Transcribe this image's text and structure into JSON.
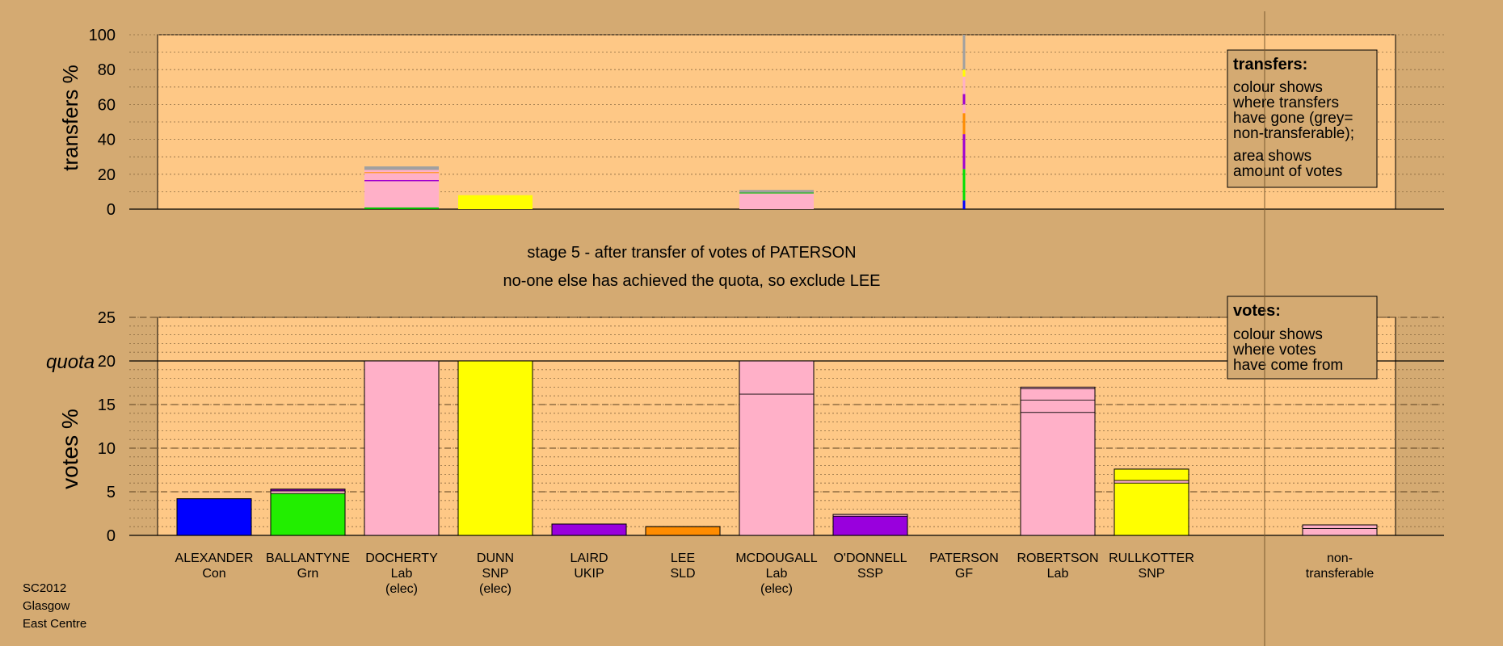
{
  "colors": {
    "background": "#d4aa72",
    "plot_bg": "#fec886",
    "grey": "#a0a0a0"
  },
  "chart_data": [
    {
      "type": "bar",
      "ylabel": "transfers %",
      "ylim": [
        0,
        100
      ],
      "yticks": [
        "0",
        "20",
        "40",
        "60",
        "80",
        "100"
      ],
      "grid": "dotted every 10",
      "candidates": [
        "ALEXANDER",
        "BALLANTYNE",
        "DOCHERTY",
        "DUNN",
        "LAIRD",
        "LEE",
        "MCDOUGALL",
        "O'DONNELL",
        "PATERSON",
        "ROBERTSON",
        "RULLKOTTER",
        "non-transferable"
      ],
      "values": [
        0,
        0,
        23,
        8,
        0,
        0,
        11,
        0,
        100,
        0,
        0,
        0
      ],
      "segments": [
        [],
        [],
        [
          {
            "color": "#00c000",
            "h": 1
          },
          {
            "color": "#ffb0c8",
            "h": 15
          },
          {
            "color": "#a000d0",
            "h": 0.7
          },
          {
            "color": "#ffb0c8",
            "h": 4
          },
          {
            "color": "#ff8c00",
            "h": 0.5
          },
          {
            "color": "#ffb0c8",
            "h": 1.3
          },
          {
            "color": "#a0a0a0",
            "h": 2
          }
        ],
        [
          {
            "color": "#ffff00",
            "h": 8
          }
        ],
        [],
        [],
        [
          {
            "color": "#ffb0c8",
            "h": 9
          },
          {
            "color": "#00c000",
            "h": 0.5
          },
          {
            "color": "#a0a0a0",
            "h": 1.5
          }
        ],
        [],
        [
          {
            "color": "#0000ff",
            "h": 5
          },
          {
            "color": "#00e000",
            "h": 18
          },
          {
            "color": "#a000d0",
            "h": 20
          },
          {
            "color": "#ff8c00",
            "h": 12
          },
          {
            "color": "#ffb0c8",
            "h": 5
          },
          {
            "color": "#a000d0",
            "h": 6
          },
          {
            "color": "#ffb0c8",
            "h": 10
          },
          {
            "color": "#ffff00",
            "h": 4
          },
          {
            "color": "#a0a0a0",
            "h": 20
          }
        ],
        [],
        [],
        []
      ],
      "legend": {
        "title": "transfers:",
        "lines": [
          "colour shows",
          "where transfers",
          "have gone (grey=",
          "non-transferable);",
          "area shows",
          "amount of votes"
        ]
      }
    },
    {
      "type": "bar",
      "ylabel": "votes %",
      "ylim": [
        0,
        25
      ],
      "yticks": [
        "0",
        "5",
        "10",
        "15",
        "20",
        "25"
      ],
      "quota_label": "quota",
      "quota": 20,
      "candidates": [
        "ALEXANDER",
        "BALLANTYNE",
        "DOCHERTY",
        "DUNN",
        "LAIRD",
        "LEE",
        "MCDOUGALL",
        "O'DONNELL",
        "PATERSON",
        "ROBERTSON",
        "RULLKOTTER",
        "non-transferable"
      ],
      "values": [
        4.2,
        5.3,
        20,
        20,
        1.3,
        1.0,
        20,
        2.4,
        0,
        17,
        7.6,
        1.2
      ],
      "segments": [
        [
          {
            "color": "#0000ff",
            "h": 4.2
          }
        ],
        [
          {
            "color": "#22ee00",
            "h": 4.8
          },
          {
            "color": "#ffb0c8",
            "h": 0.3
          },
          {
            "color": "#a000d0",
            "h": 0.2
          }
        ],
        [
          {
            "color": "#ffb0c8",
            "h": 20
          }
        ],
        [
          {
            "color": "#ffff00",
            "h": 20
          }
        ],
        [
          {
            "color": "#9900dd",
            "h": 1.3
          }
        ],
        [
          {
            "color": "#ff8c00",
            "h": 1.0
          }
        ],
        [
          {
            "color": "#ffb0c8",
            "h": 16.2
          },
          {
            "color": "#ffb0c8",
            "h": 3.8
          }
        ],
        [
          {
            "color": "#9900dd",
            "h": 2.2
          },
          {
            "color": "#ffb0c8",
            "h": 0.2
          }
        ],
        [],
        [
          {
            "color": "#ffb0c8",
            "h": 14.1
          },
          {
            "color": "#ffb0c8",
            "h": 1.4
          },
          {
            "color": "#ffb0c8",
            "h": 1.3
          },
          {
            "color": "#ffb0c8",
            "h": 0.2
          }
        ],
        [
          {
            "color": "#ffff00",
            "h": 6.0
          },
          {
            "color": "#ffb0c8",
            "h": 0.3
          },
          {
            "color": "#ffff00",
            "h": 1.3
          }
        ],
        [
          {
            "color": "#ffb0c8",
            "h": 0.8
          },
          {
            "color": "#ffb0c8",
            "h": 0.4
          }
        ]
      ],
      "legend": {
        "title": "votes:",
        "lines": [
          "colour shows",
          "where votes",
          "have come from"
        ]
      }
    }
  ],
  "stage_title": "stage 5 - after transfer of votes of PATERSON",
  "stage_subtitle": "no-one else has achieved the quota, so exclude LEE",
  "candidate_labels": [
    {
      "name": "ALEXANDER",
      "party": "Con",
      "status": ""
    },
    {
      "name": "BALLANTYNE",
      "party": "Grn",
      "status": ""
    },
    {
      "name": "DOCHERTY",
      "party": "Lab",
      "status": "(elec)"
    },
    {
      "name": "DUNN",
      "party": "SNP",
      "status": "(elec)"
    },
    {
      "name": "LAIRD",
      "party": "UKIP",
      "status": ""
    },
    {
      "name": "LEE",
      "party": "SLD",
      "status": ""
    },
    {
      "name": "MCDOUGALL",
      "party": "Lab",
      "status": "(elec)"
    },
    {
      "name": "O'DONNELL",
      "party": "SSP",
      "status": ""
    },
    {
      "name": "PATERSON",
      "party": "GF",
      "status": ""
    },
    {
      "name": "ROBERTSON",
      "party": "Lab",
      "status": ""
    },
    {
      "name": "RULLKOTTER",
      "party": "SNP",
      "status": ""
    },
    {
      "name": "non-",
      "party": "transferable",
      "status": ""
    }
  ],
  "footer": {
    "line1": "SC2012",
    "line2": "Glasgow",
    "line3": "East Centre"
  }
}
